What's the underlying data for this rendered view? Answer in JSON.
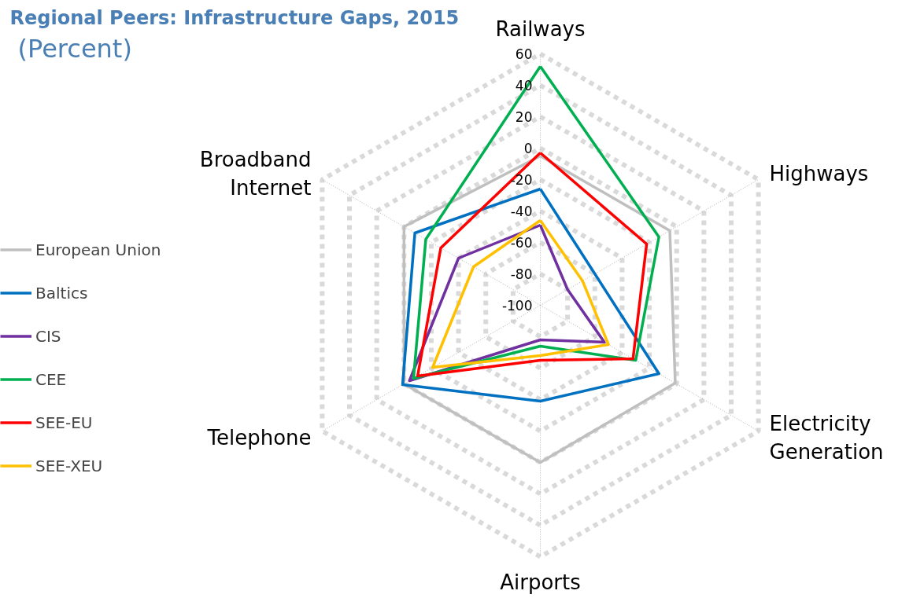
{
  "chart_data": {
    "type": "radar",
    "title": "Regional Peers: Infrastructure Gaps, 2015",
    "subtitle": "(Percent)",
    "categories": [
      "Railways",
      "Highways",
      "Electricity Generation",
      "Airports",
      "Telephone",
      "Broadband Internet"
    ],
    "ylim": [
      -100,
      60
    ],
    "yticks": [
      60,
      40,
      20,
      0,
      -20,
      -40,
      -60,
      -80,
      -100
    ],
    "grid": true,
    "legend": "left",
    "series": [
      {
        "name": "European Union",
        "color": "#bfbfbf",
        "values": [
          -5,
          -5,
          -1,
          0,
          0,
          0
        ]
      },
      {
        "name": "Baltics",
        "color": "#0070c0",
        "values": [
          -26,
          -60,
          -13,
          -39,
          1,
          -8
        ]
      },
      {
        "name": "CIS",
        "color": "#7030a0",
        "values": [
          -49,
          -80,
          -53,
          -78,
          -4,
          -40
        ]
      },
      {
        "name": "CEE",
        "color": "#00b050",
        "values": [
          52,
          -13,
          -30,
          -74,
          -7,
          -16
        ]
      },
      {
        "name": "SEE-EU",
        "color": "#ff0000",
        "values": [
          -3,
          -22,
          -32,
          -65,
          -10,
          -27
        ]
      },
      {
        "name": "SEE-XEU",
        "color": "#ffc000",
        "values": [
          -46,
          -69,
          -50,
          -68,
          -21,
          -51
        ]
      }
    ]
  }
}
